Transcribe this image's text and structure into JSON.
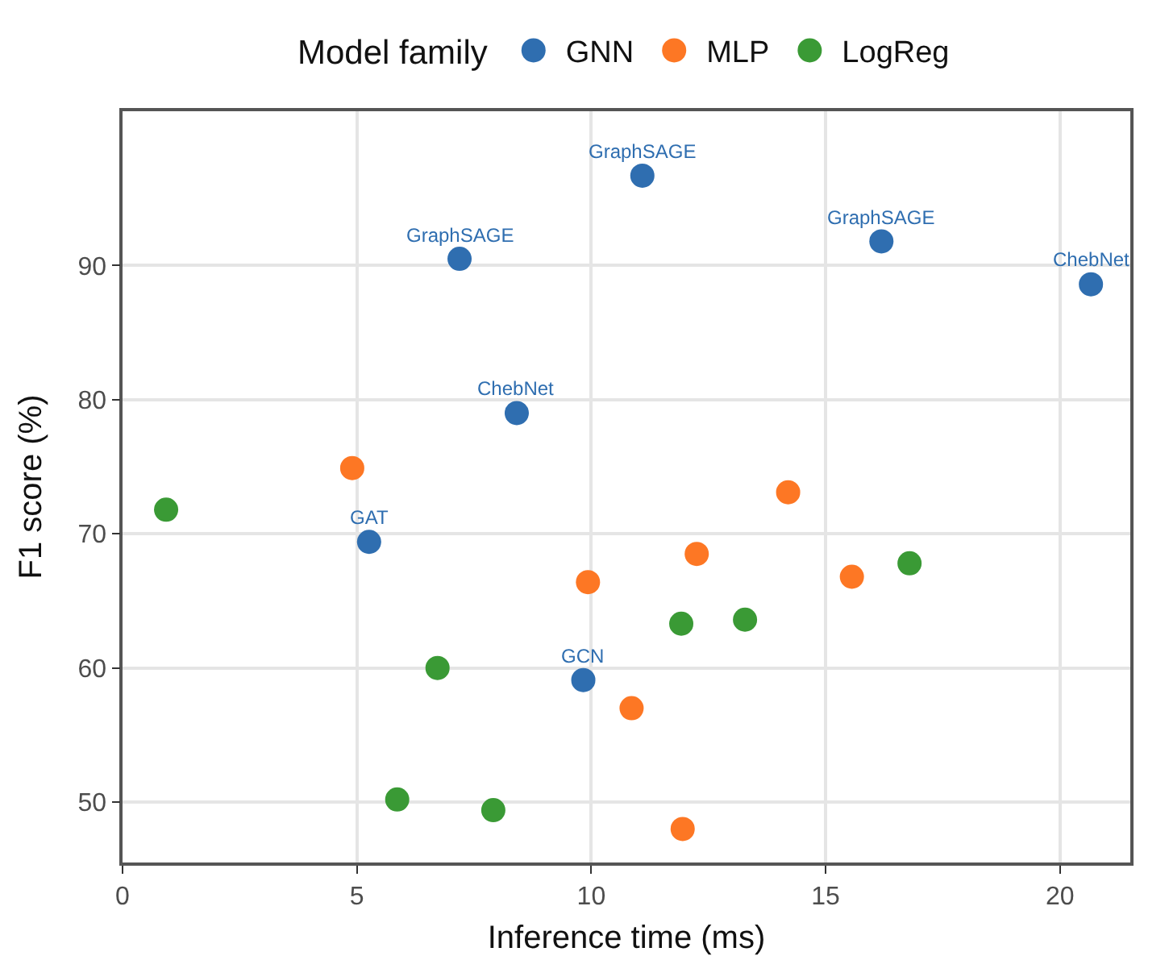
{
  "chart_data": {
    "type": "scatter",
    "xlabel": "Inference time (ms)",
    "ylabel": "F1 score (%)",
    "legend_title": "Model family",
    "legend": "top",
    "grid": true,
    "marker": "circle",
    "xlim": [
      0,
      21.5
    ],
    "xticks": [
      0,
      5,
      10,
      15,
      20
    ],
    "ylim": [
      45.5,
      101.5
    ],
    "yticks": [
      50,
      60,
      70,
      80,
      90
    ],
    "series": [
      {
        "name": "GNN",
        "color": "#2f6eb0",
        "x": [
          11.09,
          7.19,
          16.19,
          20.66,
          8.41,
          5.26,
          9.83
        ],
        "values": [
          96.7,
          90.5,
          91.8,
          88.6,
          79.0,
          69.4,
          59.1
        ]
      },
      {
        "name": "MLP",
        "color": "#fd7724",
        "x": [
          4.9,
          14.2,
          12.25,
          9.93,
          15.56,
          10.86,
          11.95
        ],
        "values": [
          74.9,
          73.1,
          68.5,
          66.4,
          66.8,
          57.0,
          48.0
        ]
      },
      {
        "name": "LogReg",
        "color": "#3a9a35",
        "x": [
          0.93,
          6.72,
          11.92,
          13.28,
          16.79,
          5.86,
          7.91
        ],
        "values": [
          71.8,
          60.0,
          63.3,
          63.6,
          67.8,
          50.2,
          49.4
        ]
      }
    ],
    "annotations": [
      {
        "text": "GraphSAGE",
        "x": 11.09,
        "y": 96.7
      },
      {
        "text": "GraphSAGE",
        "x": 7.19,
        "y": 90.5
      },
      {
        "text": "GraphSAGE",
        "x": 16.19,
        "y": 91.8
      },
      {
        "text": "ChebNet",
        "x": 20.66,
        "y": 88.6
      },
      {
        "text": "ChebNet",
        "x": 8.41,
        "y": 79.0
      },
      {
        "text": "GAT",
        "x": 5.26,
        "y": 69.4
      },
      {
        "text": "GCN",
        "x": 9.83,
        "y": 59.1
      }
    ]
  }
}
